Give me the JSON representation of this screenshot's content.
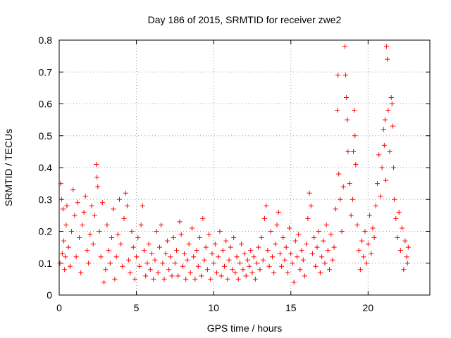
{
  "chart_data": {
    "type": "scatter",
    "title": "Day 186 of 2015, SRMTID for receiver zwe2",
    "xlabel": "GPS time / hours",
    "ylabel": "SRMTID / TECUs",
    "xlim": [
      0,
      24
    ],
    "ylim": [
      0,
      0.8
    ],
    "xticks": [
      0,
      5,
      10,
      15,
      20
    ],
    "xtick_labels": [
      "0",
      "5",
      "10",
      "15",
      "20"
    ],
    "yticks": [
      0,
      0.1,
      0.2,
      0.3,
      0.4,
      0.5,
      0.6,
      0.7,
      0.8
    ],
    "ytick_labels": [
      "0",
      "0.1",
      "0.2",
      "0.3",
      "0.4",
      "0.5",
      "0.6",
      "0.7",
      "0.8"
    ],
    "grid": true,
    "marker": "+",
    "color": "#ff0000",
    "series": [
      {
        "name": "SRMTID",
        "points": [
          [
            0.05,
            0.1
          ],
          [
            0.1,
            0.35
          ],
          [
            0.15,
            0.3
          ],
          [
            0.2,
            0.13
          ],
          [
            0.25,
            0.27
          ],
          [
            0.3,
            0.17
          ],
          [
            0.35,
            0.08
          ],
          [
            0.4,
            0.12
          ],
          [
            0.45,
            0.22
          ],
          [
            0.5,
            0.28
          ],
          [
            0.6,
            0.15
          ],
          [
            0.7,
            0.09
          ],
          [
            0.8,
            0.2
          ],
          [
            0.9,
            0.33
          ],
          [
            1.0,
            0.25
          ],
          [
            1.1,
            0.12
          ],
          [
            1.2,
            0.29
          ],
          [
            1.3,
            0.18
          ],
          [
            1.4,
            0.07
          ],
          [
            1.5,
            0.22
          ],
          [
            1.6,
            0.26
          ],
          [
            1.7,
            0.31
          ],
          [
            1.8,
            0.14
          ],
          [
            1.9,
            0.1
          ],
          [
            2.0,
            0.19
          ],
          [
            2.1,
            0.28
          ],
          [
            2.2,
            0.16
          ],
          [
            2.3,
            0.25
          ],
          [
            2.4,
            0.41
          ],
          [
            2.45,
            0.37
          ],
          [
            2.5,
            0.34
          ],
          [
            2.6,
            0.2
          ],
          [
            2.7,
            0.12
          ],
          [
            2.8,
            0.29
          ],
          [
            2.9,
            0.04
          ],
          [
            3.0,
            0.08
          ],
          [
            3.1,
            0.22
          ],
          [
            3.2,
            0.14
          ],
          [
            3.3,
            0.1
          ],
          [
            3.4,
            0.18
          ],
          [
            3.5,
            0.27
          ],
          [
            3.6,
            0.05
          ],
          [
            3.7,
            0.12
          ],
          [
            3.8,
            0.19
          ],
          [
            3.9,
            0.3
          ],
          [
            4.0,
            0.16
          ],
          [
            4.1,
            0.09
          ],
          [
            4.2,
            0.24
          ],
          [
            4.3,
            0.32
          ],
          [
            4.4,
            0.28
          ],
          [
            4.5,
            0.11
          ],
          [
            4.6,
            0.07
          ],
          [
            4.7,
            0.2
          ],
          [
            4.8,
            0.15
          ],
          [
            4.9,
            0.05
          ],
          [
            5.0,
            0.12
          ],
          [
            5.1,
            0.18
          ],
          [
            5.2,
            0.09
          ],
          [
            5.3,
            0.22
          ],
          [
            5.4,
            0.28
          ],
          [
            5.5,
            0.14
          ],
          [
            5.6,
            0.06
          ],
          [
            5.7,
            0.1
          ],
          [
            5.8,
            0.16
          ],
          [
            5.9,
            0.08
          ],
          [
            6.0,
            0.13
          ],
          [
            6.1,
            0.05
          ],
          [
            6.2,
            0.11
          ],
          [
            6.3,
            0.2
          ],
          [
            6.4,
            0.07
          ],
          [
            6.5,
            0.15
          ],
          [
            6.6,
            0.22
          ],
          [
            6.7,
            0.1
          ],
          [
            6.8,
            0.05
          ],
          [
            6.9,
            0.13
          ],
          [
            7.0,
            0.17
          ],
          [
            7.1,
            0.08
          ],
          [
            7.2,
            0.12
          ],
          [
            7.3,
            0.06
          ],
          [
            7.4,
            0.18
          ],
          [
            7.5,
            0.1
          ],
          [
            7.6,
            0.14
          ],
          [
            7.7,
            0.06
          ],
          [
            7.8,
            0.23
          ],
          [
            7.9,
            0.19
          ],
          [
            8.0,
            0.09
          ],
          [
            8.1,
            0.13
          ],
          [
            8.2,
            0.05
          ],
          [
            8.3,
            0.11
          ],
          [
            8.4,
            0.16
          ],
          [
            8.5,
            0.07
          ],
          [
            8.6,
            0.21
          ],
          [
            8.7,
            0.12
          ],
          [
            8.8,
            0.05
          ],
          [
            8.9,
            0.14
          ],
          [
            9.0,
            0.09
          ],
          [
            9.1,
            0.18
          ],
          [
            9.2,
            0.06
          ],
          [
            9.3,
            0.24
          ],
          [
            9.4,
            0.11
          ],
          [
            9.5,
            0.15
          ],
          [
            9.6,
            0.08
          ],
          [
            9.7,
            0.19
          ],
          [
            9.8,
            0.05
          ],
          [
            9.9,
            0.13
          ],
          [
            10.0,
            0.1
          ],
          [
            10.1,
            0.16
          ],
          [
            10.2,
            0.07
          ],
          [
            10.3,
            0.12
          ],
          [
            10.4,
            0.2
          ],
          [
            10.5,
            0.06
          ],
          [
            10.6,
            0.14
          ],
          [
            10.7,
            0.09
          ],
          [
            10.8,
            0.17
          ],
          [
            10.9,
            0.05
          ],
          [
            11.0,
            0.11
          ],
          [
            11.1,
            0.15
          ],
          [
            11.2,
            0.08
          ],
          [
            11.3,
            0.18
          ],
          [
            11.4,
            0.07
          ],
          [
            11.5,
            0.12
          ],
          [
            11.6,
            0.05
          ],
          [
            11.7,
            0.1
          ],
          [
            11.8,
            0.16
          ],
          [
            11.9,
            0.08
          ],
          [
            12.0,
            0.13
          ],
          [
            12.1,
            0.06
          ],
          [
            12.2,
            0.11
          ],
          [
            12.3,
            0.09
          ],
          [
            12.4,
            0.14
          ],
          [
            12.5,
            0.07
          ],
          [
            12.6,
            0.12
          ],
          [
            12.7,
            0.05
          ],
          [
            12.8,
            0.1
          ],
          [
            12.9,
            0.15
          ],
          [
            13.0,
            0.08
          ],
          [
            13.1,
            0.18
          ],
          [
            13.2,
            0.11
          ],
          [
            13.3,
            0.24
          ],
          [
            13.4,
            0.28
          ],
          [
            13.5,
            0.14
          ],
          [
            13.6,
            0.09
          ],
          [
            13.7,
            0.2
          ],
          [
            13.8,
            0.12
          ],
          [
            13.9,
            0.07
          ],
          [
            14.0,
            0.16
          ],
          [
            14.1,
            0.22
          ],
          [
            14.2,
            0.26
          ],
          [
            14.3,
            0.13
          ],
          [
            14.4,
            0.09
          ],
          [
            14.5,
            0.18
          ],
          [
            14.6,
            0.11
          ],
          [
            14.7,
            0.15
          ],
          [
            14.8,
            0.07
          ],
          [
            14.9,
            0.21
          ],
          [
            15.0,
            0.13
          ],
          [
            15.1,
            0.1
          ],
          [
            15.2,
            0.04
          ],
          [
            15.3,
            0.17
          ],
          [
            15.4,
            0.12
          ],
          [
            15.5,
            0.19
          ],
          [
            15.6,
            0.08
          ],
          [
            15.7,
            0.14
          ],
          [
            15.8,
            0.11
          ],
          [
            15.9,
            0.06
          ],
          [
            16.0,
            0.16
          ],
          [
            16.1,
            0.24
          ],
          [
            16.2,
            0.32
          ],
          [
            16.3,
            0.28
          ],
          [
            16.4,
            0.13
          ],
          [
            16.5,
            0.18
          ],
          [
            16.6,
            0.09
          ],
          [
            16.7,
            0.15
          ],
          [
            16.8,
            0.2
          ],
          [
            16.9,
            0.07
          ],
          [
            17.0,
            0.12
          ],
          [
            17.1,
            0.17
          ],
          [
            17.2,
            0.1
          ],
          [
            17.3,
            0.22
          ],
          [
            17.4,
            0.14
          ],
          [
            17.5,
            0.08
          ],
          [
            17.6,
            0.19
          ],
          [
            17.7,
            0.11
          ],
          [
            17.8,
            0.15
          ],
          [
            17.9,
            0.27
          ],
          [
            18.0,
            0.58
          ],
          [
            18.05,
            0.69
          ],
          [
            18.1,
            0.38
          ],
          [
            18.2,
            0.3
          ],
          [
            18.3,
            0.2
          ],
          [
            18.4,
            0.34
          ],
          [
            18.5,
            0.78
          ],
          [
            18.55,
            0.69
          ],
          [
            18.6,
            0.62
          ],
          [
            18.65,
            0.55
          ],
          [
            18.7,
            0.45
          ],
          [
            18.8,
            0.35
          ],
          [
            18.9,
            0.25
          ],
          [
            19.0,
            0.3
          ],
          [
            19.05,
            0.45
          ],
          [
            19.1,
            0.58
          ],
          [
            19.15,
            0.5
          ],
          [
            19.2,
            0.41
          ],
          [
            19.3,
            0.22
          ],
          [
            19.4,
            0.14
          ],
          [
            19.5,
            0.08
          ],
          [
            19.6,
            0.17
          ],
          [
            19.7,
            0.12
          ],
          [
            19.8,
            0.2
          ],
          [
            19.9,
            0.1
          ],
          [
            20.0,
            0.16
          ],
          [
            20.1,
            0.25
          ],
          [
            20.2,
            0.13
          ],
          [
            20.3,
            0.21
          ],
          [
            20.4,
            0.18
          ],
          [
            20.5,
            0.28
          ],
          [
            20.6,
            0.35
          ],
          [
            20.7,
            0.44
          ],
          [
            20.8,
            0.31
          ],
          [
            20.9,
            0.4
          ],
          [
            21.0,
            0.52
          ],
          [
            21.05,
            0.47
          ],
          [
            21.1,
            0.55
          ],
          [
            21.15,
            0.36
          ],
          [
            21.2,
            0.78
          ],
          [
            21.25,
            0.74
          ],
          [
            21.3,
            0.58
          ],
          [
            21.4,
            0.45
          ],
          [
            21.5,
            0.62
          ],
          [
            21.55,
            0.6
          ],
          [
            21.6,
            0.53
          ],
          [
            21.65,
            0.4
          ],
          [
            21.7,
            0.3
          ],
          [
            21.8,
            0.24
          ],
          [
            21.9,
            0.18
          ],
          [
            22.0,
            0.26
          ],
          [
            22.1,
            0.14
          ],
          [
            22.2,
            0.21
          ],
          [
            22.3,
            0.08
          ],
          [
            22.4,
            0.17
          ],
          [
            22.5,
            0.12
          ],
          [
            22.55,
            0.1
          ],
          [
            22.6,
            0.15
          ]
        ]
      }
    ]
  }
}
